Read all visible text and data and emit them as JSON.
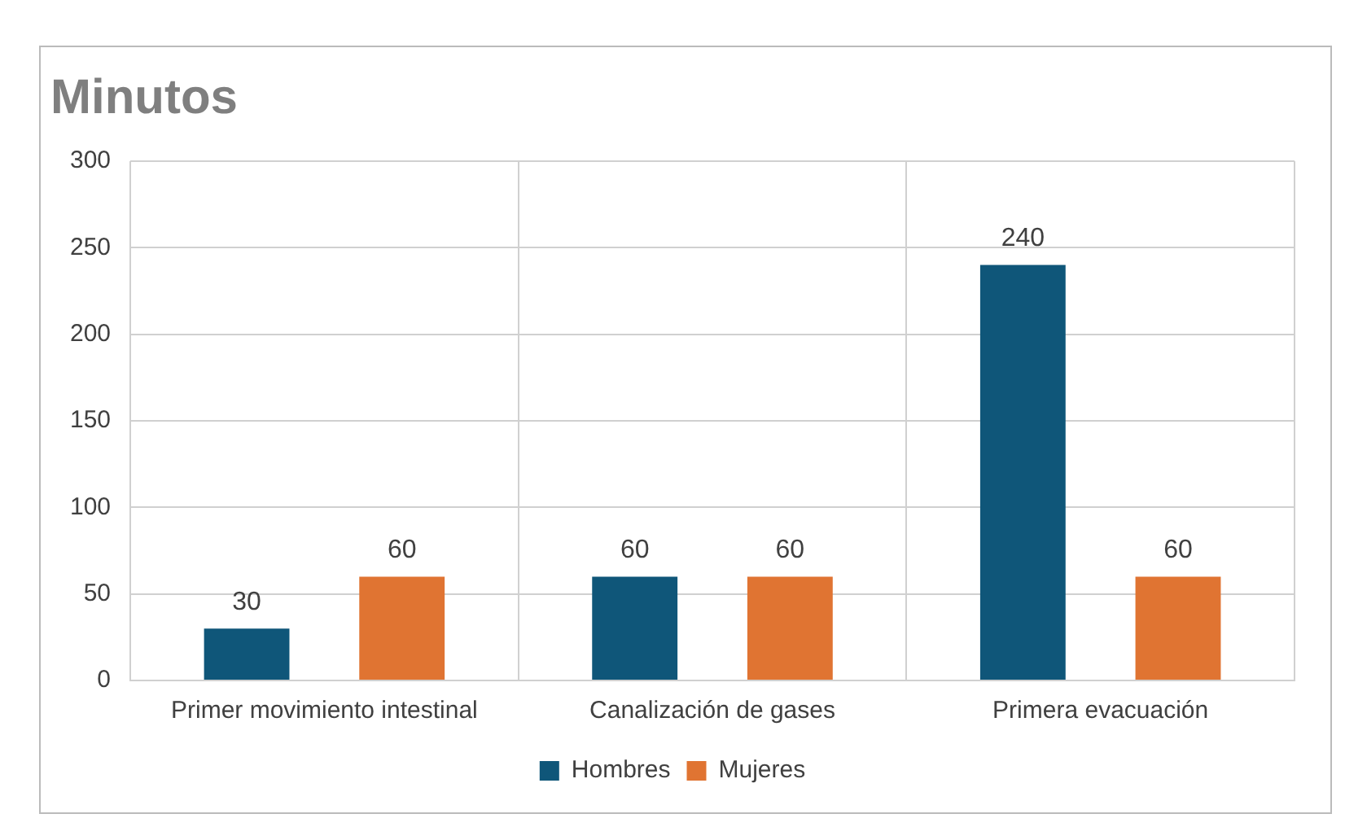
{
  "chart_data": {
    "type": "bar",
    "title": "Minutos",
    "categories": [
      "Primer movimiento intestinal",
      "Canalización de gases",
      "Primera evacuación"
    ],
    "series": [
      {
        "name": "Hombres",
        "color": "#0f5679",
        "values": [
          30,
          60,
          240
        ]
      },
      {
        "name": "Mujeres",
        "color": "#e07432",
        "values": [
          60,
          60,
          60
        ]
      }
    ],
    "ylim": [
      0,
      300
    ],
    "yticks": [
      0,
      50,
      100,
      150,
      200,
      250,
      300
    ],
    "grid": true,
    "legend": "bottom",
    "data_labels": true
  }
}
